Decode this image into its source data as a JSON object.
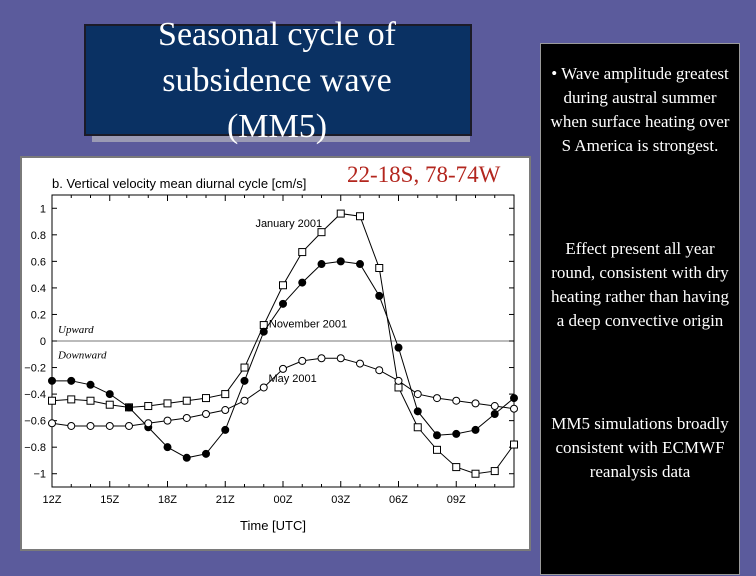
{
  "slide": {
    "title": "Seasonal cycle of\nsubsidence wave\n(MM5)",
    "region_label": "22-18S, 78-74W",
    "bullets": [
      "• Wave amplitude greatest during austral summer when surface heating over S America is strongest.",
      "Effect present all year round, consistent with dry heating rather than having a deep convective origin",
      "MM5 simulations broadly consistent with ECMWF reanalysis data"
    ],
    "colors": {
      "background": "#5b5b9c",
      "title_box": "#0a3163",
      "region_label": "#b3261e",
      "text_panel": "#000000"
    }
  },
  "chart_data": {
    "type": "line",
    "title": "b. Vertical velocity mean diurnal cycle [cm/s]",
    "xlabel": "Time [UTC]",
    "ylabel": "",
    "x_ticks": [
      "12Z",
      "15Z",
      "18Z",
      "21Z",
      "00Z",
      "03Z",
      "06Z",
      "09Z"
    ],
    "x_hours": [
      0,
      1,
      2,
      3,
      4,
      5,
      6,
      7,
      8,
      9,
      10,
      11,
      12,
      13,
      14,
      15,
      16,
      17,
      18,
      19,
      20,
      21,
      22,
      23,
      24
    ],
    "ylim": [
      -1.1,
      1.1
    ],
    "y_ticks": [
      1,
      0.8,
      0.6,
      0.4,
      0.2,
      0,
      -0.2,
      -0.4,
      -0.6,
      -0.8,
      -1
    ],
    "y_tick_labels": [
      "1",
      "0.8",
      "0.6",
      "0.4",
      "0.2",
      "0",
      "−0.2",
      "−0.4",
      "−0.6",
      "−0.8",
      "−1"
    ],
    "zero_line": true,
    "region_labels": {
      "upward": "Upward",
      "downward": "Downward"
    },
    "series": [
      {
        "name": "January 2001",
        "marker": "square",
        "label_hour": 12.3,
        "label_value": 0.86,
        "values": [
          -0.45,
          -0.44,
          -0.45,
          -0.48,
          -0.5,
          -0.49,
          -0.47,
          -0.45,
          -0.43,
          -0.4,
          -0.2,
          0.12,
          0.42,
          0.67,
          0.82,
          0.96,
          0.94,
          0.55,
          -0.35,
          -0.65,
          -0.82,
          -0.95,
          -1.0,
          -0.98,
          -0.78
        ]
      },
      {
        "name": "November 2001",
        "marker": "filled-circle",
        "label_hour": 13.3,
        "label_value": 0.1,
        "values": [
          -0.3,
          -0.3,
          -0.33,
          -0.4,
          -0.5,
          -0.65,
          -0.8,
          -0.88,
          -0.85,
          -0.67,
          -0.3,
          0.07,
          0.28,
          0.44,
          0.58,
          0.6,
          0.58,
          0.34,
          -0.05,
          -0.53,
          -0.71,
          -0.7,
          -0.67,
          -0.55,
          -0.43
        ]
      },
      {
        "name": "May 2001",
        "marker": "open-circle",
        "label_hour": 12.5,
        "label_value": -0.31,
        "values": [
          -0.62,
          -0.64,
          -0.64,
          -0.64,
          -0.64,
          -0.62,
          -0.6,
          -0.58,
          -0.55,
          -0.52,
          -0.45,
          -0.35,
          -0.21,
          -0.15,
          -0.13,
          -0.13,
          -0.17,
          -0.22,
          -0.3,
          -0.4,
          -0.43,
          -0.45,
          -0.47,
          -0.49,
          -0.51
        ]
      }
    ]
  }
}
